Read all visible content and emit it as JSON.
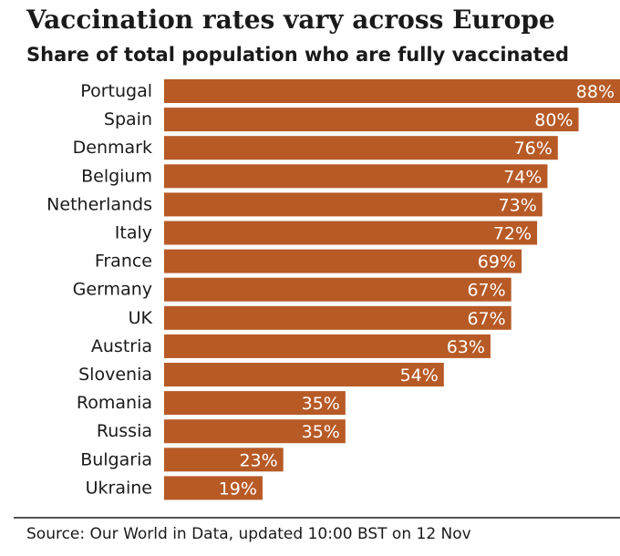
{
  "title": "Vaccination rates vary across Europe",
  "subtitle": "Share of total population who are fully vaccinated",
  "source": "Source: Our World in Data, updated 10:00 BST on 12 Nov",
  "colors": {
    "bar": "#b75a26",
    "bar_label": "#ffffff",
    "text": "#1a1a1a"
  },
  "chart_data": {
    "type": "bar",
    "orientation": "horizontal",
    "title": "Vaccination rates vary across Europe",
    "subtitle": "Share of total population who are fully vaccinated",
    "categories": [
      "Portugal",
      "Spain",
      "Denmark",
      "Belgium",
      "Netherlands",
      "Italy",
      "France",
      "Germany",
      "UK",
      "Austria",
      "Slovenia",
      "Romania",
      "Russia",
      "Bulgaria",
      "Ukraine"
    ],
    "values": [
      88,
      80,
      76,
      74,
      73,
      72,
      69,
      67,
      67,
      63,
      54,
      35,
      35,
      23,
      19
    ],
    "value_labels": [
      "88%",
      "80%",
      "76%",
      "74%",
      "73%",
      "72%",
      "69%",
      "67%",
      "67%",
      "63%",
      "54%",
      "35%",
      "35%",
      "23%",
      "19%"
    ],
    "unit": "%",
    "xlim": [
      0,
      88
    ],
    "grid": false,
    "legend": "none"
  }
}
